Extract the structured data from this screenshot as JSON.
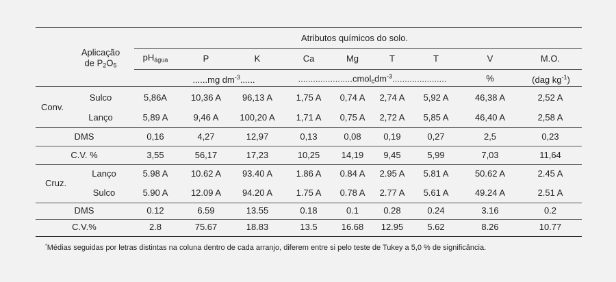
{
  "header": {
    "group_title": "Atributos químicos do solo.",
    "application_label_line1": "Aplicação",
    "application_label_line2_prefix": "de P",
    "application_label_sub1": "2",
    "application_label_mid": "O",
    "application_label_sub2": "5",
    "columns": [
      {
        "label": "pH",
        "sub": "água"
      },
      {
        "label": "P"
      },
      {
        "label": "K"
      },
      {
        "label": "Ca"
      },
      {
        "label": "Mg"
      },
      {
        "label": "T"
      },
      {
        "label": "T"
      },
      {
        "label": "V"
      },
      {
        "label": "M.O."
      }
    ],
    "units": {
      "mg_prefix": "......mg dm",
      "mg_sup": "-3",
      "mg_suffix": "......",
      "cmol_prefix": "......................cmol",
      "cmol_sub": "c",
      "cmol_mid": "dm",
      "cmol_sup": "-3",
      "cmol_suffix": "......................",
      "v_unit": "%",
      "mo_prefix": "(dag kg",
      "mo_sup": "-1",
      "mo_suffix": ")"
    }
  },
  "rows": {
    "conv_label": "Conv.",
    "conv_sulco": {
      "label": "Sulco",
      "values": [
        "5,86A",
        "10,36 A",
        "96,13 A",
        "1,75 A",
        "0,74 A",
        "2,74 A",
        "5,92 A",
        "46,38 A",
        "2,52 A"
      ]
    },
    "conv_lanco": {
      "label": "Lanço",
      "values": [
        "5,89 A",
        "9,46 A",
        "100,20 A",
        "1,71 A",
        "0,75 A",
        "2,72 A",
        "5,85 A",
        "46,40 A",
        "2,58 A"
      ]
    },
    "dms1": {
      "label": "DMS",
      "values": [
        "0,16",
        "4,27",
        "12,97",
        "0,13",
        "0,08",
        "0,19",
        "0,27",
        "2,5",
        "0,23"
      ]
    },
    "cv1": {
      "label": "C.V. %",
      "values": [
        "3,55",
        "56,17",
        "17,23",
        "10,25",
        "14,19",
        "9,45",
        "5,99",
        "7,03",
        "11,64"
      ]
    },
    "cruz_label": "Cruz.",
    "cruz_lanco": {
      "label": "Lanço",
      "values": [
        "5.98 A",
        "10.62 A",
        "93.40 A",
        "1.86 A",
        "0.84 A",
        "2.95 A",
        "5.81 A",
        "50.62 A",
        "2.45 A"
      ]
    },
    "cruz_sulco": {
      "label": "Sulco",
      "values": [
        "5.90 A",
        "12.09 A",
        "94.20 A",
        "1.75 A",
        "0.78 A",
        "2.77 A",
        "5.61 A",
        "49.24 A",
        "2.51 A"
      ]
    },
    "dms2": {
      "label": "DMS",
      "values": [
        "0.12",
        "6.59",
        "13.55",
        "0.18",
        "0.1",
        "0.28",
        "0.24",
        "3.16",
        "0.2"
      ]
    },
    "cv2": {
      "label": "C.V.%",
      "values": [
        "2.8",
        "75.67",
        "18.83",
        "13.5",
        "16.68",
        "12.95",
        "5.62",
        "8.26",
        "10.77"
      ]
    }
  },
  "footnote": {
    "marker": "*",
    "text": "Médias seguidas por letras distintas na coluna dentro de cada arranjo, diferem entre si pelo teste de Tukey a 5,0 % de significância."
  }
}
